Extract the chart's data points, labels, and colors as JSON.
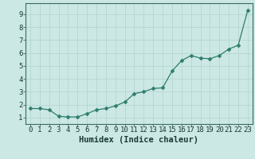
{
  "x": [
    0,
    1,
    2,
    3,
    4,
    5,
    6,
    7,
    8,
    9,
    10,
    11,
    12,
    13,
    14,
    15,
    16,
    17,
    18,
    19,
    20,
    21,
    22,
    23
  ],
  "y": [
    1.7,
    1.7,
    1.6,
    1.1,
    1.05,
    1.05,
    1.3,
    1.6,
    1.7,
    1.9,
    2.2,
    2.85,
    3.0,
    3.25,
    3.3,
    4.6,
    5.4,
    5.8,
    5.6,
    5.55,
    5.8,
    6.3,
    6.6,
    9.3
  ],
  "xlabel": "Humidex (Indice chaleur)",
  "xlim": [
    -0.5,
    23.5
  ],
  "ylim": [
    0.5,
    9.85
  ],
  "yticks": [
    1,
    2,
    3,
    4,
    5,
    6,
    7,
    8,
    9
  ],
  "xticks": [
    0,
    1,
    2,
    3,
    4,
    5,
    6,
    7,
    8,
    9,
    10,
    11,
    12,
    13,
    14,
    15,
    16,
    17,
    18,
    19,
    20,
    21,
    22,
    23
  ],
  "line_color": "#2d7d6e",
  "marker_color": "#2d7d6e",
  "bg_color": "#cce8e4",
  "grid_color": "#b8d8d4",
  "axis_color": "#3a6a60",
  "font_color": "#1a3a34",
  "xlabel_fontsize": 7.5,
  "tick_fontsize": 6.5
}
